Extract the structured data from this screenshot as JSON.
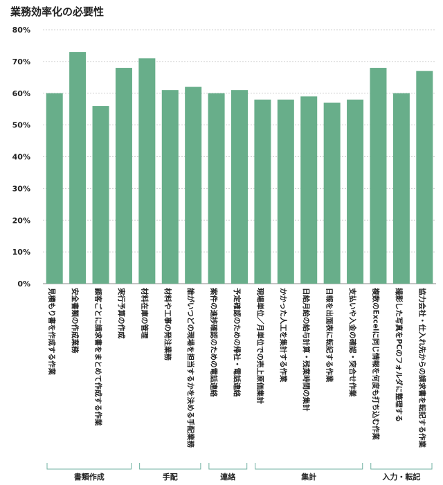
{
  "chart_data": {
    "type": "bar",
    "title": "業務効率化の必要性",
    "ylim": [
      0,
      80
    ],
    "yticks": [
      "0%",
      "10%",
      "20%",
      "30%",
      "40%",
      "50%",
      "60%",
      "70%",
      "80%"
    ],
    "grid": true,
    "bar_color": "#68ae8a",
    "group_line_color": "#6fb0a0",
    "categories": [
      "見積もり書を作成する作業",
      "安全書類の作成業務",
      "顧客ごとに請求書をまとめて作成する作業",
      "実行予算の作成",
      "材料在庫の管理",
      "材料や工事の発注業務",
      "誰がいつどの現場を担当するかを決める手配業務",
      "案件の進捗確認のための電話連絡",
      "予定確認のための帰社・電話連絡",
      "現場単位／月単位での売上原価集計",
      "かかった人工を集計する作業",
      "日給月給の給与計算・残業時間の集計",
      "日報を出面表に転記する作業",
      "支払いや入金の確認・突合せ作業",
      "複数のExcelに同じ情報を何度も打ち込む作業",
      "撮影した写真をPCのフォルダに整理する",
      "協力会社・仕入れ先からの請求書を転記する作業"
    ],
    "values": [
      60,
      73,
      56,
      68,
      71,
      61,
      62,
      60,
      61,
      58,
      58,
      59,
      57,
      58,
      68,
      60,
      67
    ],
    "groups": [
      {
        "label": "書類作成",
        "start": 0,
        "end": 3
      },
      {
        "label": "手配",
        "start": 4,
        "end": 6
      },
      {
        "label": "連絡",
        "start": 7,
        "end": 8
      },
      {
        "label": "集計",
        "start": 9,
        "end": 13
      },
      {
        "label": "入力・転記",
        "start": 14,
        "end": 16
      }
    ]
  }
}
